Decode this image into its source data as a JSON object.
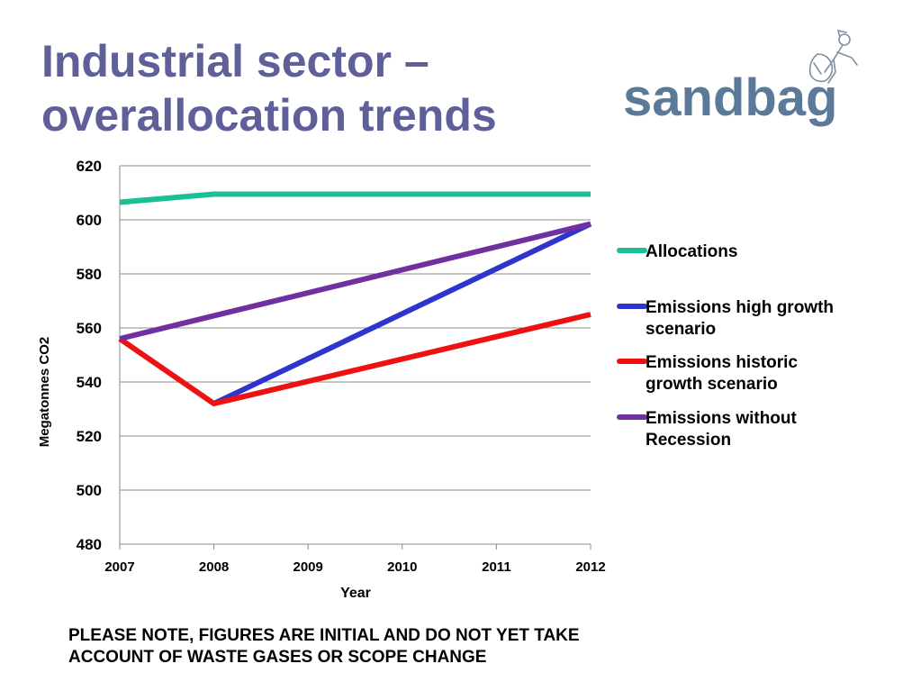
{
  "slide": {
    "title_line1": "Industrial sector –",
    "title_line2": "overallocation trends",
    "logo_text": "sandbag",
    "note_line1": "PLEASE NOTE, FIGURES ARE INITIAL AND DO NOT YET TAKE",
    "note_line2": "ACCOUNT OF WASTE GASES OR SCOPE CHANGE"
  },
  "colors": {
    "title": "#5f5f99",
    "logo": "#5b7a99"
  },
  "chart_data": {
    "type": "line",
    "title": "",
    "xlabel": "Year",
    "ylabel": "Megatonnes CO2",
    "x": [
      2007,
      2008,
      2009,
      2010,
      2011,
      2012
    ],
    "ylim": [
      480,
      620
    ],
    "yticks": [
      480,
      500,
      520,
      540,
      560,
      580,
      600,
      620
    ],
    "grid": true,
    "legend_position": "right",
    "series": [
      {
        "name": "Allocations",
        "color": "#1bbf95",
        "points": [
          [
            2007,
            606.5
          ],
          [
            2008,
            609.5
          ],
          [
            2012,
            609.5
          ]
        ]
      },
      {
        "name": "Emissions high growth scenario",
        "color": "#2e34cc",
        "points": [
          [
            2008,
            532
          ],
          [
            2012,
            598.5
          ]
        ]
      },
      {
        "name": "Emissions historic growth scenario",
        "color": "#ee1111",
        "points": [
          [
            2007,
            556
          ],
          [
            2008,
            532
          ],
          [
            2012,
            565
          ]
        ]
      },
      {
        "name": "Emissions without Recession",
        "color": "#7030a0",
        "points": [
          [
            2007,
            556
          ],
          [
            2012,
            598.5
          ]
        ]
      }
    ],
    "legend": [
      {
        "line1": "Allocations",
        "line2": ""
      },
      {
        "line1": "Emissions high growth",
        "line2": "scenario"
      },
      {
        "line1": "Emissions historic",
        "line2": "growth scenario"
      },
      {
        "line1": "Emissions without",
        "line2": "Recession"
      }
    ]
  }
}
